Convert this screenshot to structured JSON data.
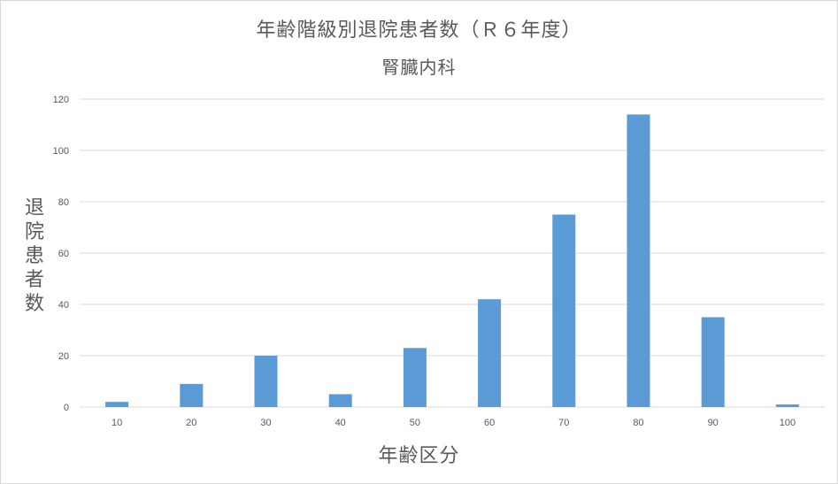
{
  "chart_data": {
    "type": "bar",
    "title": "年齢階級別退院患者数（Ｒ６年度）",
    "subtitle": "腎臓内科",
    "xlabel": "年齢区分",
    "ylabel": "退院患者数",
    "categories": [
      "10",
      "20",
      "30",
      "40",
      "50",
      "60",
      "70",
      "80",
      "90",
      "100"
    ],
    "values": [
      2,
      9,
      20,
      5,
      23,
      42,
      75,
      114,
      35,
      1
    ],
    "ylim": [
      0,
      120
    ],
    "yticks": [
      0,
      20,
      40,
      60,
      80,
      100,
      120
    ],
    "grid": true,
    "legend": "none",
    "bar_color": "#5b9bd5",
    "grid_color": "#d9d9d9",
    "text_color": "#595959"
  }
}
